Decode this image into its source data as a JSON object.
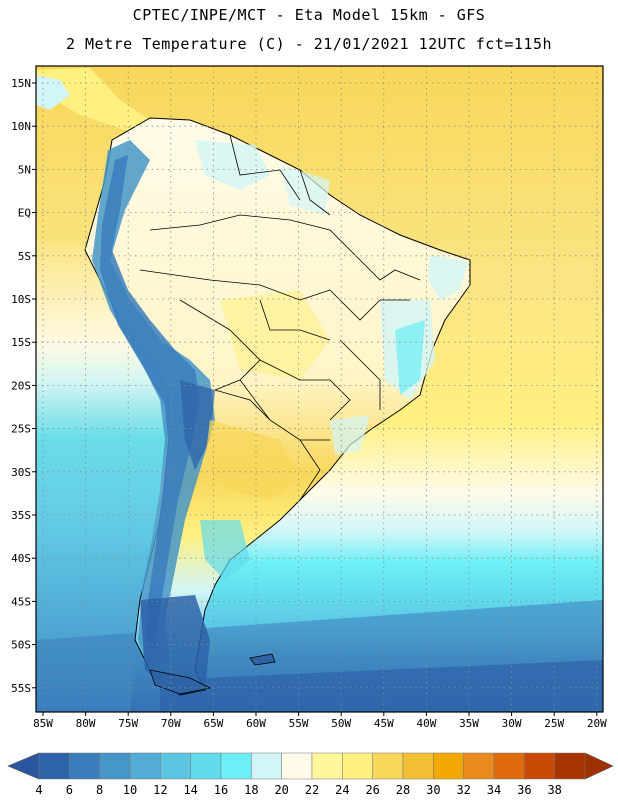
{
  "header": {
    "line1": "CPTEC/INPE/MCT -  Eta Model 15km - GFS",
    "line2": "2 Metre Temperature (C) - 21/01/2021 12UTC fct=115h"
  },
  "axes": {
    "lat_labels": [
      "15N",
      "10N",
      "5N",
      "EQ",
      "5S",
      "10S",
      "15S",
      "20S",
      "25S",
      "30S",
      "35S",
      "40S",
      "45S",
      "50S",
      "55S"
    ],
    "lon_labels": [
      "85W",
      "80W",
      "75W",
      "70W",
      "65W",
      "60W",
      "55W",
      "50W",
      "45W",
      "40W",
      "35W",
      "30W",
      "25W",
      "20W"
    ]
  },
  "colorbar": {
    "labels": [
      "4",
      "6",
      "8",
      "10",
      "12",
      "14",
      "16",
      "18",
      "20",
      "22",
      "24",
      "26",
      "28",
      "30",
      "32",
      "34",
      "36",
      "38"
    ],
    "colors": [
      "#2e63a8",
      "#3a7dbd",
      "#4696c8",
      "#52acd6",
      "#5cc6e2",
      "#62dced",
      "#6cf0f6",
      "#d2f6f8",
      "#fffbe8",
      "#fff79c",
      "#fff080",
      "#f8d75a",
      "#f2c032",
      "#f2a800",
      "#e88a1c",
      "#df6a0c",
      "#c84a04",
      "#a83402"
    ],
    "low_end_color": "#2a56a0",
    "high_end_color": "#a03000"
  },
  "map_colors": {
    "ocean_warm": "#f8d75a",
    "ocean_tropical": "#fbe583",
    "land_warm": "#fff5c8",
    "coast_line": "#000000",
    "grid": "#9a9a9a"
  }
}
